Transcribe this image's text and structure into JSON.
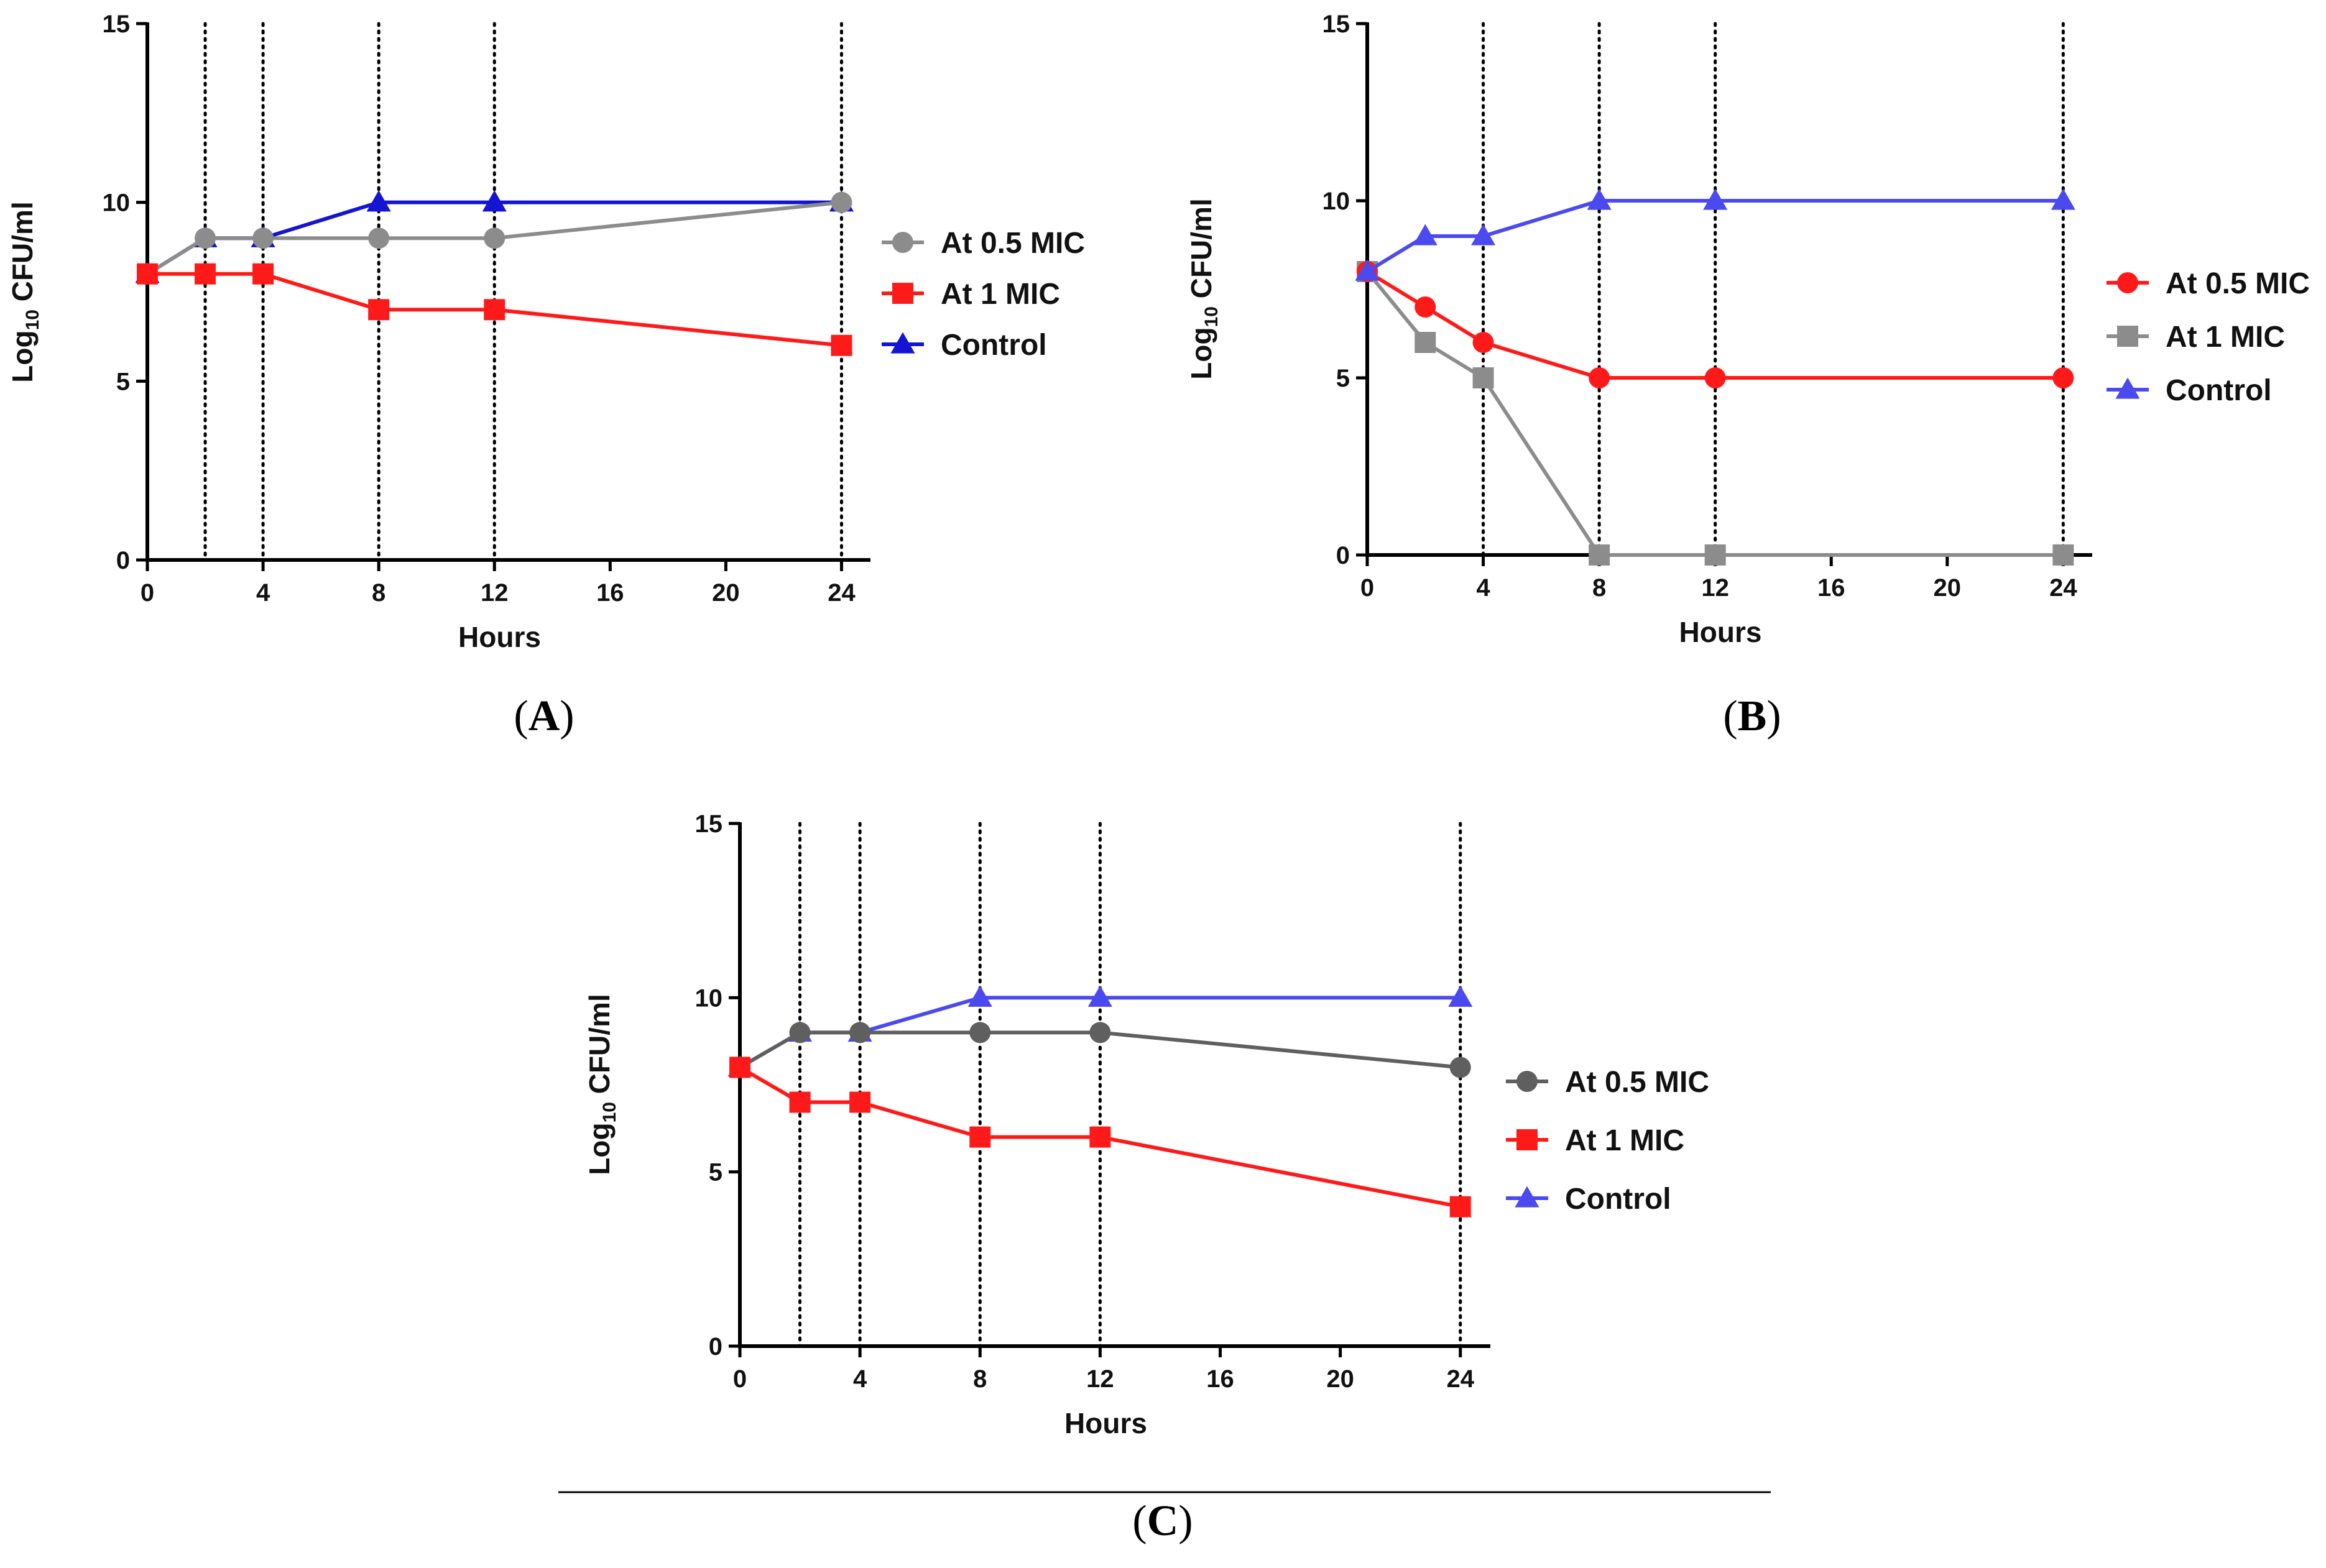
{
  "colors": {
    "red": "#ff1a1a",
    "gray": "#8c8c8c",
    "darkgray": "#5f5f5f",
    "blue": "#1414d2",
    "lightblue": "#4a4af0",
    "axis": "#000000"
  },
  "chart_data": [
    {
      "id": "A",
      "type": "line",
      "caption": {
        "open": "(",
        "letter": "A",
        "close": ")"
      },
      "xlabel": "Hours",
      "ylabel": {
        "prefix": "Log",
        "sub": "10",
        "suffix": " CFU/ml"
      },
      "xlim": [
        0,
        25
      ],
      "ylim": [
        0,
        15
      ],
      "xticks": [
        "0",
        "4",
        "8",
        "12",
        "16",
        "20",
        "24"
      ],
      "yticks": [
        "0",
        "5",
        "10",
        "15"
      ],
      "vlines": [
        2,
        4,
        8,
        12,
        24
      ],
      "legend_position": "right",
      "x": [
        0,
        2,
        4,
        8,
        12,
        24
      ],
      "series": [
        {
          "name": "At 0.5 MIC",
          "marker": "circle",
          "color": "#8c8c8c",
          "values": [
            8,
            9,
            9,
            9,
            9,
            10
          ]
        },
        {
          "name": "At 1 MIC",
          "marker": "square",
          "color": "#ff1a1a",
          "values": [
            8,
            8,
            8,
            7,
            7,
            6
          ]
        },
        {
          "name": "Control",
          "marker": "triangle",
          "color": "#1414d2",
          "values": [
            8,
            9,
            9,
            10,
            10,
            10
          ]
        }
      ],
      "draw_order": [
        2,
        0,
        1
      ]
    },
    {
      "id": "B",
      "type": "line",
      "caption": {
        "open": "(",
        "letter": "B",
        "close": ")"
      },
      "xlabel": "Hours",
      "ylabel": {
        "prefix": "Log",
        "sub": "10",
        "suffix": " CFU/ml"
      },
      "xlim": [
        0,
        25
      ],
      "ylim": [
        0,
        15
      ],
      "xticks": [
        "0",
        "4",
        "8",
        "12",
        "16",
        "20",
        "24"
      ],
      "yticks": [
        "0",
        "5",
        "10",
        "15"
      ],
      "vlines": [
        4,
        8,
        12,
        24
      ],
      "legend_position": "right",
      "x": [
        0,
        2,
        4,
        8,
        12,
        24
      ],
      "series": [
        {
          "name": "At 0.5 MIC",
          "marker": "circle",
          "color": "#ff1a1a",
          "values": [
            8,
            7,
            6,
            5,
            5,
            5
          ]
        },
        {
          "name": "At 1 MIC",
          "marker": "square",
          "color": "#8c8c8c",
          "values": [
            8,
            6,
            5,
            0,
            0,
            0
          ]
        },
        {
          "name": "Control",
          "marker": "triangle",
          "color": "#4a4af0",
          "values": [
            8,
            9,
            9,
            10,
            10,
            10
          ]
        }
      ],
      "draw_order": [
        1,
        0,
        2
      ]
    },
    {
      "id": "C",
      "type": "line",
      "caption": {
        "open": "(",
        "letter": "C",
        "close": ")"
      },
      "xlabel": "Hours",
      "ylabel": {
        "prefix": "Log",
        "sub": "10",
        "suffix": " CFU/ml"
      },
      "xlim": [
        0,
        25
      ],
      "ylim": [
        0,
        15
      ],
      "xticks": [
        "0",
        "4",
        "8",
        "12",
        "16",
        "20",
        "24"
      ],
      "yticks": [
        "0",
        "5",
        "10",
        "15"
      ],
      "vlines": [
        2,
        4,
        8,
        12,
        24
      ],
      "legend_position": "right",
      "x": [
        0,
        2,
        4,
        8,
        12,
        24
      ],
      "series": [
        {
          "name": "At 0.5 MIC",
          "marker": "circle",
          "color": "#5f5f5f",
          "values": [
            8,
            9,
            9,
            9,
            9,
            8
          ]
        },
        {
          "name": "At 1 MIC",
          "marker": "square",
          "color": "#ff1a1a",
          "values": [
            8,
            7,
            7,
            6,
            6,
            4
          ]
        },
        {
          "name": "Control",
          "marker": "triangle",
          "color": "#4a4af0",
          "values": [
            8,
            9,
            9,
            10,
            10,
            10
          ]
        }
      ],
      "draw_order": [
        2,
        0,
        1
      ]
    }
  ]
}
